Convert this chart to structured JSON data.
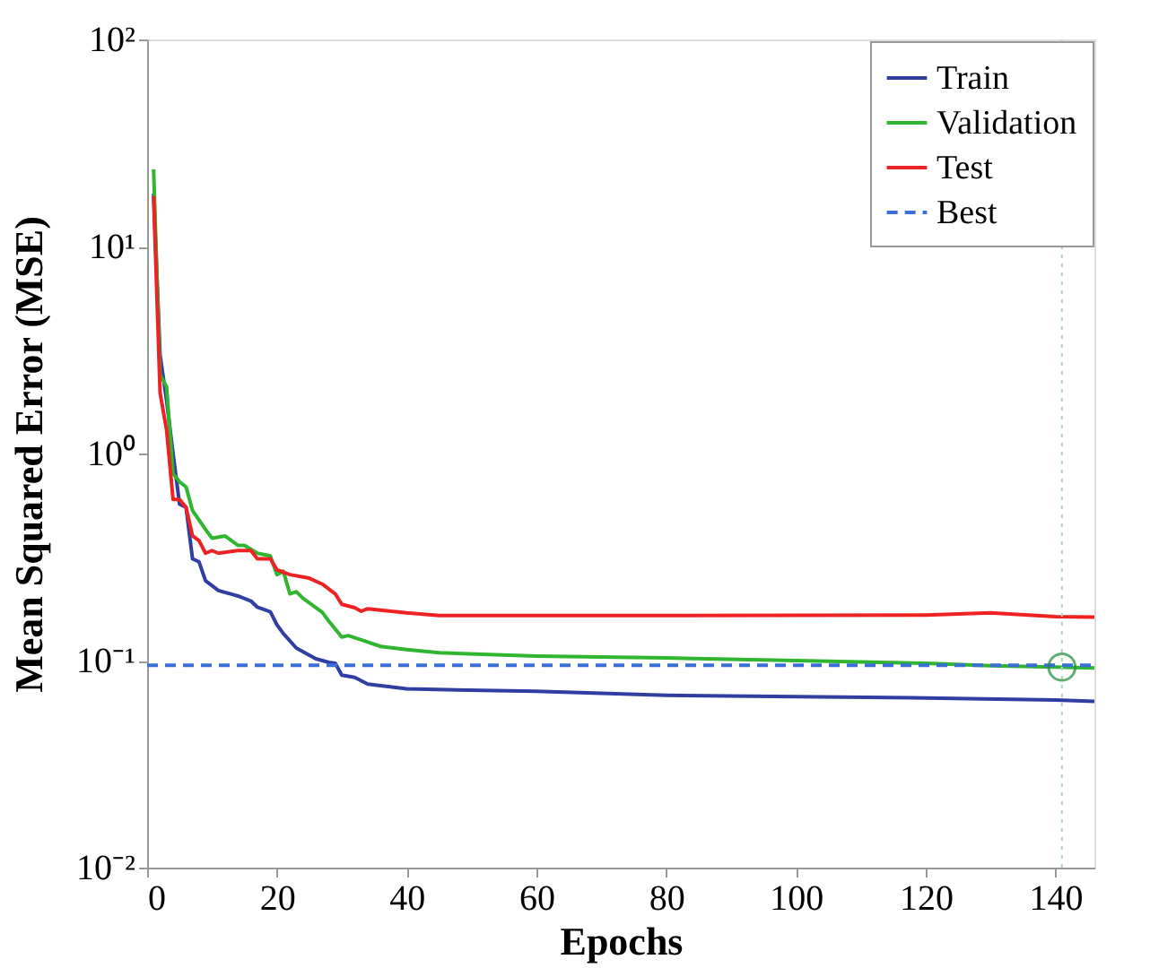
{
  "chart_data": {
    "type": "line",
    "xlabel": "Epochs",
    "ylabel": "Mean Squared Error (MSE)",
    "log": "y",
    "xlim": [
      0,
      146
    ],
    "xticks": [
      0,
      20,
      40,
      60,
      80,
      100,
      120,
      140
    ],
    "ylim": [
      0.01,
      100
    ],
    "yticks": [
      {
        "value": 0.01,
        "label": "10⁻²"
      },
      {
        "value": 0.1,
        "label": "10⁻¹"
      },
      {
        "value": 1,
        "label": "10⁰"
      },
      {
        "value": 10,
        "label": "10¹"
      },
      {
        "value": 100,
        "label": "10²"
      }
    ],
    "grid": false,
    "legend": "top right",
    "marker": "none",
    "series": [
      {
        "name": "Train",
        "color": "#2f3ea0",
        "x": [
          1,
          2,
          3,
          4,
          5,
          6,
          7,
          8,
          9,
          11,
          14,
          16,
          17,
          19,
          20,
          21,
          23,
          26,
          28,
          29,
          30,
          32,
          34,
          40,
          60,
          80,
          100,
          120,
          140,
          146
        ],
        "values": [
          18,
          3,
          1.8,
          1.0,
          0.57,
          0.55,
          0.31,
          0.3,
          0.243,
          0.218,
          0.205,
          0.194,
          0.181,
          0.172,
          0.149,
          0.135,
          0.115,
          0.102,
          0.098,
          0.097,
          0.085,
          0.083,
          0.077,
          0.073,
          0.071,
          0.068,
          0.067,
          0.066,
          0.0645,
          0.0636
        ]
      },
      {
        "name": "Validation",
        "color": "#2fb52f",
        "x": [
          1,
          2,
          3,
          4,
          5,
          6,
          7,
          9,
          10,
          12,
          13,
          14,
          15,
          17,
          19,
          20,
          21,
          22,
          23,
          24,
          27,
          28,
          30,
          31,
          33,
          36,
          40,
          45,
          60,
          80,
          100,
          120,
          130,
          140,
          146
        ],
        "values": [
          23.6,
          2.4,
          2.1,
          0.8,
          0.73,
          0.69,
          0.53,
          0.43,
          0.39,
          0.4,
          0.38,
          0.36,
          0.36,
          0.33,
          0.32,
          0.26,
          0.27,
          0.21,
          0.215,
          0.2,
          0.171,
          0.155,
          0.13,
          0.132,
          0.126,
          0.117,
          0.113,
          0.109,
          0.105,
          0.103,
          0.1,
          0.097,
          0.0945,
          0.093,
          0.092
        ]
      },
      {
        "name": "Test",
        "color": "#ee2222",
        "x": [
          1,
          2,
          3,
          4,
          5,
          6,
          7,
          8,
          9,
          10,
          11,
          14,
          16,
          17,
          19,
          20,
          22,
          25,
          27,
          29,
          30,
          32,
          33,
          34,
          40,
          45,
          80,
          120,
          130,
          140,
          146
        ],
        "values": [
          17.5,
          1.96,
          1.3,
          0.6,
          0.6,
          0.55,
          0.4,
          0.38,
          0.33,
          0.34,
          0.33,
          0.34,
          0.34,
          0.31,
          0.31,
          0.275,
          0.26,
          0.25,
          0.234,
          0.21,
          0.187,
          0.18,
          0.173,
          0.178,
          0.17,
          0.165,
          0.165,
          0.166,
          0.17,
          0.163,
          0.162
        ]
      },
      {
        "name": "Best",
        "color": "#3a6fd8",
        "line_style": "dashed",
        "x": [
          0,
          146
        ],
        "values": [
          0.095,
          0.095
        ]
      },
      {
        "type": "scatter",
        "color": "#1f8a3a",
        "marker": "circle",
        "x": [
          141
        ],
        "values": [
          0.093
        ]
      }
    ],
    "ref_lines": [
      {
        "axis": "x",
        "value": 141,
        "color": "#a8dcb4",
        "line_style": "dotted"
      }
    ]
  }
}
